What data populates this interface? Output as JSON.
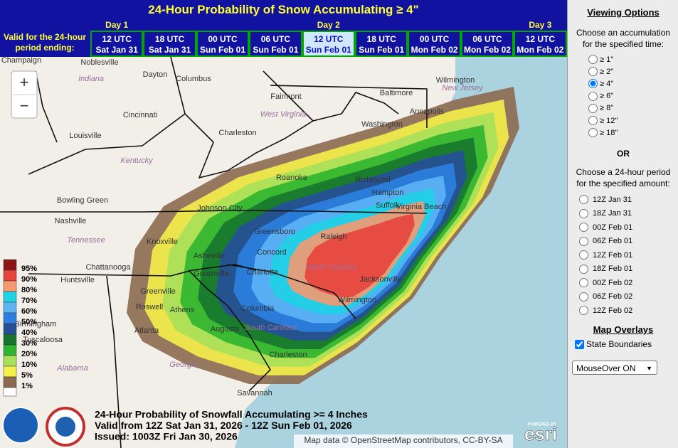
{
  "header": {
    "title": "24-Hour Probability of Snow Accumulating ≥ 4\"",
    "days": [
      "Day 1",
      "Day 2",
      "Day 3"
    ],
    "valid_label": "Valid for the 24-hour period ending:",
    "tabs": [
      {
        "time": "12 UTC",
        "date": "Sat Jan 31"
      },
      {
        "time": "18 UTC",
        "date": "Sat Jan 31"
      },
      {
        "time": "00 UTC",
        "date": "Sun Feb 01"
      },
      {
        "time": "06 UTC",
        "date": "Sun Feb 01"
      },
      {
        "time": "12 UTC",
        "date": "Sun Feb 01"
      },
      {
        "time": "18 UTC",
        "date": "Sun Feb 01"
      },
      {
        "time": "00 UTC",
        "date": "Mon Feb 02"
      },
      {
        "time": "06 UTC",
        "date": "Mon Feb 02"
      },
      {
        "time": "12 UTC",
        "date": "Mon Feb 02"
      }
    ],
    "selected_tab": 4
  },
  "map": {
    "zoom_in": "+",
    "zoom_out": "−",
    "places": [
      "Champaign",
      "Noblesville",
      "Indiana",
      "Dayton",
      "Columbus",
      "Cincinnati",
      "Fairmont",
      "West Virginia",
      "Baltimore",
      "Wilmington",
      "New Jersey",
      "Annapolis",
      "Louisville",
      "Charleston",
      "Washington",
      "Kentucky",
      "Roanoke",
      "Richmond",
      "Hampton",
      "Bowling Green",
      "Nashville",
      "Johnson City",
      "Suffolk",
      "Virginia Beach",
      "Greensboro",
      "Raleigh",
      "Tennessee",
      "Knoxville",
      "Asheville",
      "Concord",
      "Greenville",
      "Chattanooga",
      "Charlotte",
      "North Carolina",
      "Huntsville",
      "Greenville",
      "Jacksonville",
      "Wilmington",
      "Roswell",
      "Athens",
      "Columbia",
      "Birmingham",
      "Atlanta",
      "Augusta",
      "South Carolina",
      "Tuscaloosa",
      "Charleston",
      "Alabama",
      "Georgia",
      "Savannah"
    ],
    "legend": [
      {
        "label": "95%",
        "color": "#8c1414"
      },
      {
        "label": "90%",
        "color": "#e8423c"
      },
      {
        "label": "80%",
        "color": "#f59a70"
      },
      {
        "label": "70%",
        "color": "#1fd2e4"
      },
      {
        "label": "60%",
        "color": "#5db4f5"
      },
      {
        "label": "50%",
        "color": "#2c7fe0"
      },
      {
        "label": "40%",
        "color": "#274f9a"
      },
      {
        "label": "30%",
        "color": "#17752c"
      },
      {
        "label": "20%",
        "color": "#2fb52f"
      },
      {
        "label": "10%",
        "color": "#a7e05a"
      },
      {
        "label": "5%",
        "color": "#f4f04a"
      },
      {
        "label": "1%",
        "color": "#8c6a50"
      }
    ],
    "caption": [
      "24-Hour Probability of Snowfall Accumulating >= 4 Inches",
      "Valid from 12Z Sat Jan 31, 2026 - 12Z Sun Feb 01, 2026",
      "Issued: 1003Z Fri Jan 30, 2026"
    ],
    "attribution": "Map data © OpenStreetMap contributors, CC-BY-SA",
    "powered": "POWERED BY",
    "esri": "esri"
  },
  "sidebar": {
    "title": "Viewing Options",
    "accum_prompt": "Choose an accumulation for the specified time:",
    "accumulations": [
      "≥ 1\"",
      "≥ 2\"",
      "≥ 4\"",
      "≥ 6\"",
      "≥ 8\"",
      "≥ 12\"",
      "≥ 18\""
    ],
    "selected_accumulation": 2,
    "or": "OR",
    "period_prompt": "Choose a 24-hour period for the specified amount:",
    "periods": [
      "12Z Jan 31",
      "18Z Jan 31",
      "00Z Feb 01",
      "06Z Feb 01",
      "12Z Feb 01",
      "18Z Feb 01",
      "00Z Feb 02",
      "06Z Feb 02",
      "12Z Feb 02"
    ],
    "overlays_title": "Map Overlays",
    "state_boundaries": "State Boundaries",
    "state_boundaries_checked": true,
    "mouseover": "MouseOver ON"
  }
}
